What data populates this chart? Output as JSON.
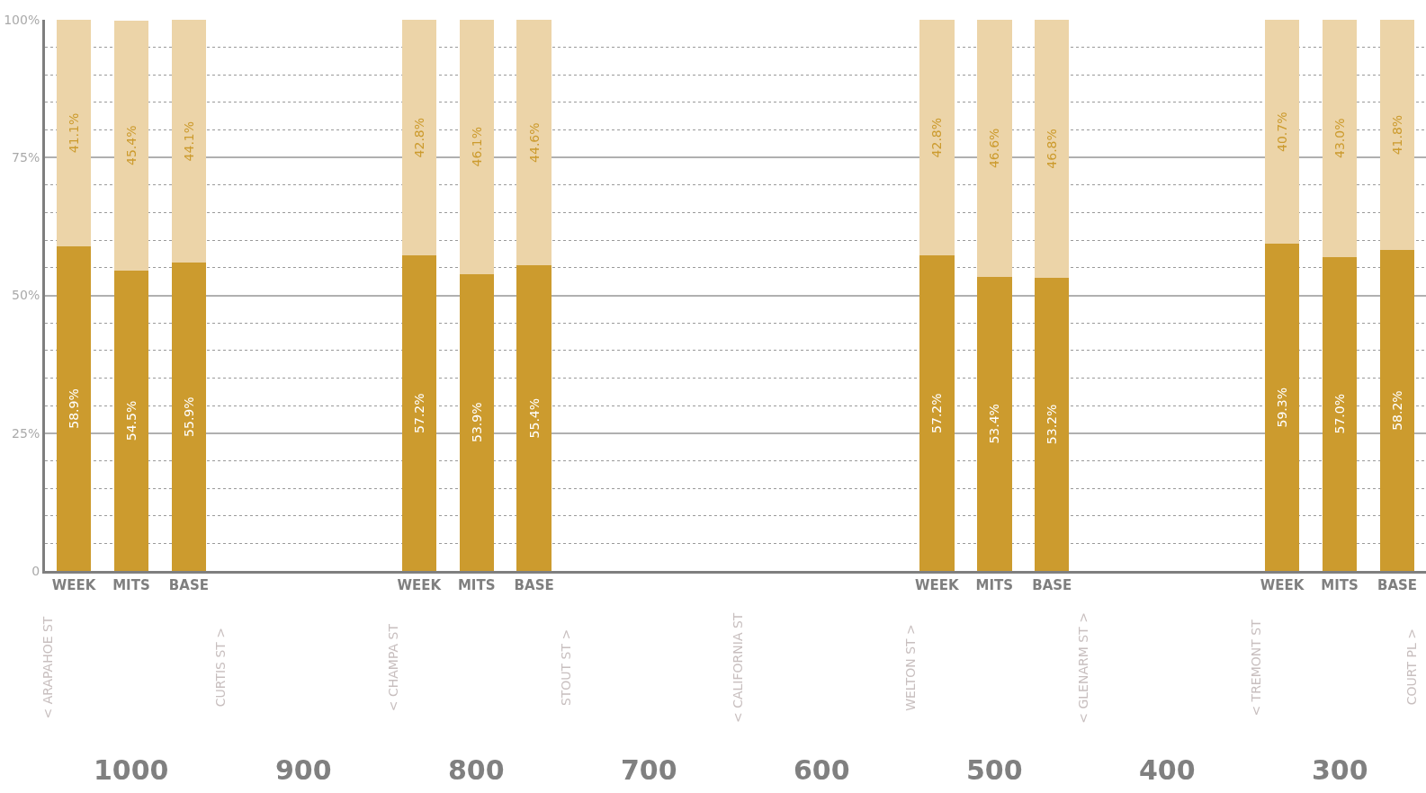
{
  "chart_data": {
    "type": "bar",
    "stacked": true,
    "categories": [
      "WEEK",
      "MITS",
      "BASE",
      null,
      null,
      null,
      "WEEK",
      "MITS",
      "BASE",
      null,
      null,
      null,
      null,
      null,
      null,
      "WEEK",
      "MITS",
      "BASE",
      null,
      null,
      null,
      "WEEK",
      "MITS",
      "BASE"
    ],
    "series": [
      {
        "color": "#cc9b2e",
        "values": [
          58.9,
          54.5,
          55.9,
          null,
          null,
          null,
          57.2,
          53.9,
          55.4,
          null,
          null,
          null,
          null,
          null,
          null,
          57.2,
          53.4,
          53.2,
          null,
          null,
          null,
          59.3,
          57.0,
          58.2
        ],
        "value_labels": [
          "58.9%",
          "54.5%",
          "55.9%",
          null,
          null,
          null,
          "57.2%",
          "53.9%",
          "55.4%",
          null,
          null,
          null,
          null,
          null,
          null,
          "57.2%",
          "53.4%",
          "53.2%",
          null,
          null,
          null,
          "59.3%",
          "57.0%",
          "58.2%"
        ]
      },
      {
        "color": "#ecd4a8",
        "values": [
          41.1,
          45.4,
          44.1,
          null,
          null,
          null,
          42.8,
          46.1,
          44.6,
          null,
          null,
          null,
          null,
          null,
          null,
          42.8,
          46.6,
          46.8,
          null,
          null,
          null,
          40.7,
          43.0,
          41.8
        ],
        "value_labels": [
          "41.1%",
          "45.4%",
          "44.1%",
          null,
          null,
          null,
          "42.8%",
          "46.1%",
          "44.6%",
          null,
          null,
          null,
          null,
          null,
          null,
          "42.8%",
          "46.6%",
          "46.8%",
          null,
          null,
          null,
          "40.7%",
          "43.0%",
          "41.8%"
        ]
      }
    ],
    "ylim": [
      0,
      100
    ],
    "yticks": [
      {
        "value": 0,
        "label": "0"
      },
      {
        "value": 5,
        "label": null
      },
      {
        "value": 10,
        "label": null
      },
      {
        "value": 15,
        "label": null
      },
      {
        "value": 20,
        "label": null
      },
      {
        "value": 25,
        "label": "25%"
      },
      {
        "value": 30,
        "label": null
      },
      {
        "value": 35,
        "label": null
      },
      {
        "value": 40,
        "label": null
      },
      {
        "value": 45,
        "label": null
      },
      {
        "value": 50,
        "label": "50%"
      },
      {
        "value": 55,
        "label": null
      },
      {
        "value": 60,
        "label": null
      },
      {
        "value": 65,
        "label": null
      },
      {
        "value": 70,
        "label": null
      },
      {
        "value": 75,
        "label": "75%"
      },
      {
        "value": 80,
        "label": null
      },
      {
        "value": 85,
        "label": null
      },
      {
        "value": 90,
        "label": null
      },
      {
        "value": 95,
        "label": null
      },
      {
        "value": 100,
        "label": "100%"
      }
    ],
    "grid": "y",
    "annotations": [
      "< ARAPAHOE ST",
      "1000",
      "CURTIS ST >",
      "900",
      "< CHAMPA ST",
      "800",
      "STOUT ST >",
      "700",
      "< CALIFORNIA ST",
      "600",
      "WELTON ST >",
      "500",
      "< GLENARM ST >",
      "400",
      "< TREMONT ST",
      "300",
      "COURT PL >"
    ]
  }
}
